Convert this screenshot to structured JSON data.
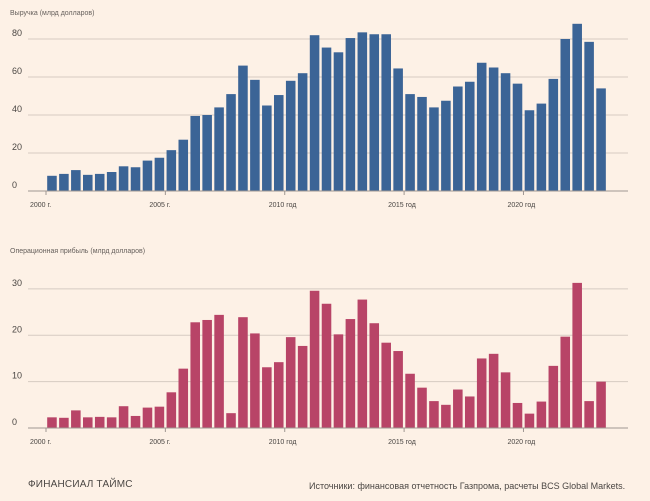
{
  "chart_data": [
    {
      "type": "bar",
      "title": "Выручка (млрд долларов)",
      "color": "#3b6496",
      "ylim": [
        0,
        90
      ],
      "yticks": [
        0,
        20,
        40,
        60,
        80
      ],
      "x_range": [
        2000,
        2023.75
      ],
      "x_start": 2000,
      "bar_step": 0.5,
      "xticks": [
        {
          "label": "2000 г.",
          "year": 2000
        },
        {
          "label": "2005 г.",
          "year": 2005
        },
        {
          "label": "2010 год",
          "year": 2010
        },
        {
          "label": "2015 год",
          "year": 2015
        },
        {
          "label": "2020 год",
          "year": 2020
        }
      ],
      "values": [
        8,
        9,
        11,
        8.5,
        9,
        10,
        13,
        12.5,
        16,
        17.5,
        21.5,
        27,
        39.5,
        40,
        44,
        51,
        66,
        58.5,
        45,
        50.5,
        58,
        62,
        82,
        75.5,
        73,
        80.5,
        83.5,
        82.5,
        82.5,
        64.5,
        51,
        49.5,
        44,
        47.5,
        55,
        57.5,
        67.5,
        65,
        62,
        56.5,
        42.5,
        46,
        59,
        80,
        88,
        78.5,
        54
      ]
    },
    {
      "type": "bar",
      "title": "Операционная прибыль (млрд долларов)",
      "color": "#b84467",
      "ylim": [
        0,
        33
      ],
      "yticks": [
        0,
        10,
        20,
        30
      ],
      "x_range": [
        2000,
        2023.75
      ],
      "x_start": 2000,
      "bar_step": 0.5,
      "xticks": [
        {
          "label": "2000 г.",
          "year": 2000
        },
        {
          "label": "2005 г.",
          "year": 2005
        },
        {
          "label": "2010 год",
          "year": 2010
        },
        {
          "label": "2015 год",
          "year": 2015
        },
        {
          "label": "2020 год",
          "year": 2020
        }
      ],
      "values": [
        2.3,
        2.2,
        3.8,
        2.3,
        2.4,
        2.3,
        4.7,
        2.6,
        4.4,
        4.6,
        7.7,
        12.8,
        22.8,
        23.3,
        24.4,
        3.2,
        23.9,
        20.4,
        13.1,
        14.2,
        19.6,
        17.7,
        29.6,
        26.8,
        20.2,
        23.5,
        27.7,
        22.6,
        18.4,
        16.6,
        11.7,
        8.7,
        5.8,
        5.0,
        8.3,
        6.8,
        15.0,
        16.0,
        12.0,
        5.4,
        3.1,
        5.7,
        13.4,
        19.7,
        31.3,
        5.8,
        10.0
      ]
    }
  ],
  "footer": {
    "brand": "ФИНАНСИАЛ ТАЙМС",
    "source": "Источники: финансовая отчетность Газпрома, расчеты BCS Global Markets."
  }
}
